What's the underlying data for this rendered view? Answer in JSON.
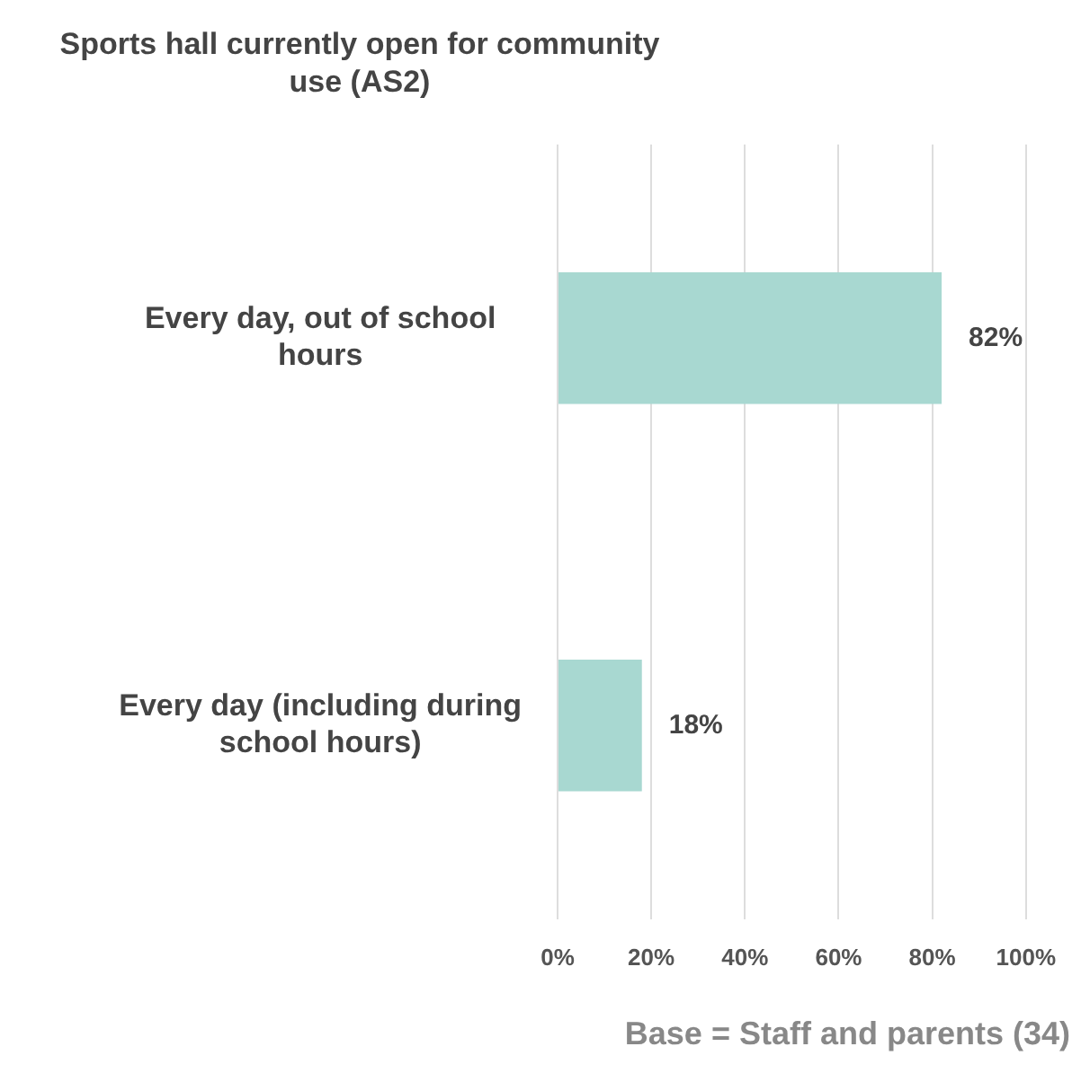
{
  "chart_data": {
    "type": "bar",
    "orientation": "horizontal",
    "title": "Sports hall currently open for community use (AS2)",
    "categories": [
      "Every day, out of school hours",
      "Every day (including during school hours)"
    ],
    "values": [
      82,
      18
    ],
    "color": "#a8d8d1",
    "xlim": [
      0,
      100
    ],
    "xticks": [
      {
        "value": 0,
        "label": "0%"
      },
      {
        "value": 20,
        "label": "20%"
      },
      {
        "value": 40,
        "label": "40%"
      },
      {
        "value": 60,
        "label": "60%"
      },
      {
        "value": 80,
        "label": "80%"
      },
      {
        "value": 100,
        "label": "100%"
      }
    ],
    "value_labels": [
      "82%",
      "18%"
    ],
    "grid": "x",
    "legend": false,
    "annotations": [
      "Base = Staff and parents (34)"
    ]
  }
}
